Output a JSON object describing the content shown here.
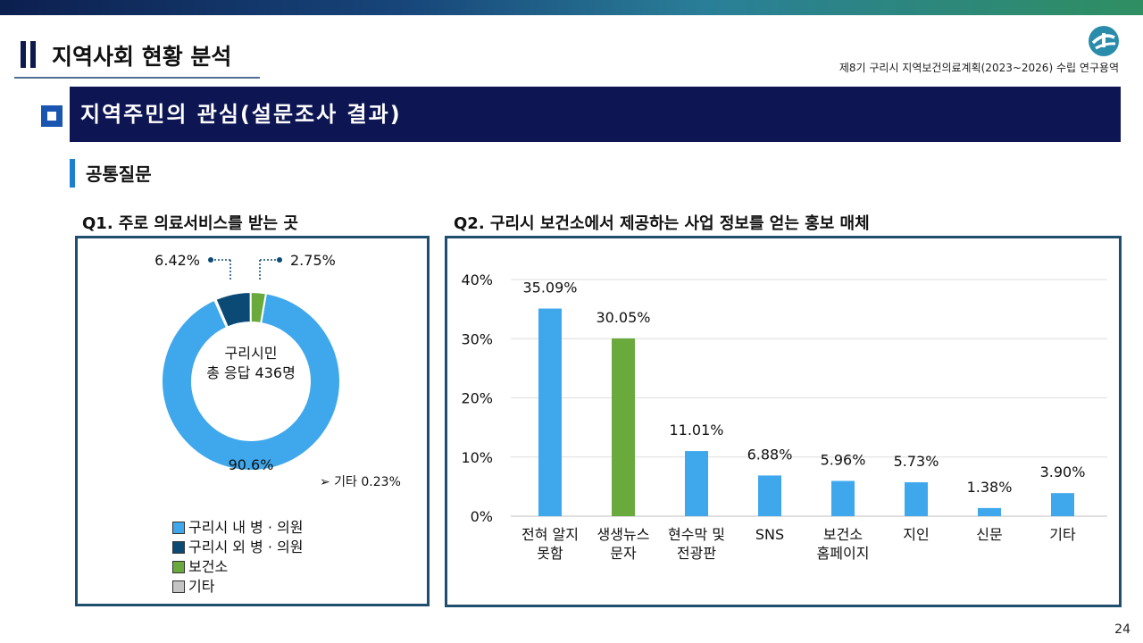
{
  "header": {
    "title": "지역사회 현황 분석",
    "subtitle": "제8기 구리시 지역보건의료계획(2023~2026) 수립 연구용역",
    "banner": "지역주민의 관심(설문조사 결과)",
    "section": "공통질문",
    "page_number": "24"
  },
  "colors": {
    "accent_dark": "#0d1553",
    "light_blue": "#3fa8ec",
    "dark_blue": "#0b4a75",
    "green": "#6aaa3c",
    "gray": "#c4c4c4"
  },
  "chart_data": [
    {
      "type": "pie",
      "title": "Q1. 주로 의료서비스를 받는 곳",
      "center_label": [
        "구리시민",
        "총 응답 436명"
      ],
      "slices": [
        {
          "label": "구리시 내 병 · 의원",
          "value": 90.6,
          "value_label": "90.6%",
          "color": "#3fa8ec"
        },
        {
          "label": "구리시 외 병 · 의원",
          "value": 6.42,
          "value_label": "6.42%",
          "color": "#0b4a75"
        },
        {
          "label": "보건소",
          "value": 2.75,
          "value_label": "2.75%",
          "color": "#6aaa3c"
        },
        {
          "label": "기타",
          "value": 0.23,
          "value_label": "0.23%",
          "color": "#c4c4c4"
        }
      ],
      "note": "➢ 기타 0.23%",
      "legend": [
        "구리시 내 병 · 의원",
        "구리시 외 병 · 의원",
        "보건소",
        "기타"
      ]
    },
    {
      "type": "bar",
      "title": "Q2. 구리시 보건소에서 제공하는 사업 정보를 얻는 홍보 매체",
      "categories": [
        [
          "전혀 알지",
          "못함"
        ],
        [
          "생생뉴스",
          "문자"
        ],
        [
          "현수막 및",
          "전광판"
        ],
        [
          "SNS"
        ],
        [
          "보건소",
          "홈페이지"
        ],
        [
          "지인"
        ],
        [
          "신문"
        ],
        [
          "기타"
        ]
      ],
      "values": [
        35.09,
        30.05,
        11.01,
        6.88,
        5.96,
        5.73,
        1.38,
        3.9
      ],
      "value_labels": [
        "35.09%",
        "30.05%",
        "11.01%",
        "6.88%",
        "5.96%",
        "5.73%",
        "1.38%",
        "3.90%"
      ],
      "highlight_index": 1,
      "ylim": [
        0,
        40
      ],
      "yticks": [
        0,
        10,
        20,
        30,
        40
      ],
      "ytick_labels": [
        "0%",
        "10%",
        "20%",
        "30%",
        "40%"
      ],
      "grid": true
    }
  ]
}
